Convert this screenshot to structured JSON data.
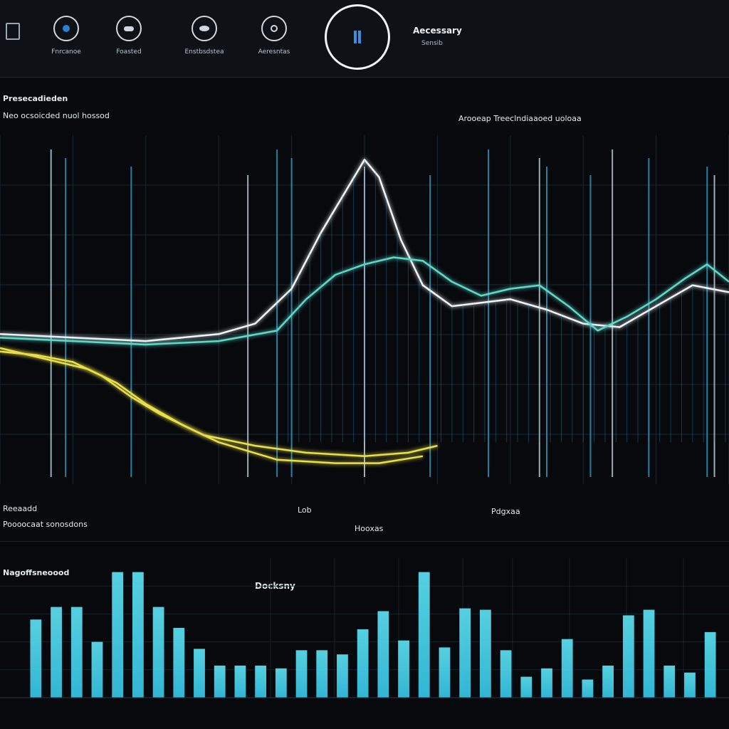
{
  "toolbar": {
    "title": "Aecessary",
    "subtitle": "Sensib",
    "tools": [
      {
        "label": "Fnrcanoe",
        "icon": "spiral-icon"
      },
      {
        "label": "Foasted",
        "icon": "cloud-icon"
      },
      {
        "label": "Enstbsdstea",
        "icon": "eye-icon"
      },
      {
        "label": "Aeresntas",
        "icon": "target-icon"
      }
    ]
  },
  "main_panel": {
    "title": "Presecadieden",
    "subtitle_left": "Neo ocsoicded nuol hossod",
    "subtitle_right": "Arooeap Treeclndiaaoed uoloaa",
    "footer_left_1": "Reeaadd",
    "footer_left_2": "Poooocaat sonosdons",
    "footer_mid_1": "Lob",
    "footer_mid_2": "Hooxas",
    "footer_right": "Pdgxaa"
  },
  "bar_panel": {
    "title": "Nagoffsneoood",
    "center_label": "Docksny"
  },
  "chart_data": [
    {
      "type": "line",
      "ylim": [
        0,
        10
      ],
      "xlim": [
        0,
        100
      ],
      "grid": true,
      "colors": {
        "peak": "#f2f5f8",
        "cyan": "#37d6ee",
        "yellow": "#e9df4a",
        "teal": "#5fd8c8"
      },
      "series": [
        {
          "color_key": "peak",
          "x": [
            0,
            10,
            20,
            30,
            35,
            40,
            44,
            48,
            50,
            52,
            55,
            58,
            62,
            66,
            70,
            75,
            80,
            85,
            90,
            95,
            100
          ],
          "y": [
            4.3,
            4.2,
            4.1,
            4.3,
            4.6,
            5.6,
            7.2,
            8.6,
            9.3,
            8.8,
            7.0,
            5.7,
            5.1,
            5.2,
            5.3,
            5.0,
            4.6,
            4.5,
            5.1,
            5.7,
            5.5
          ]
        },
        {
          "color_key": "teal",
          "x": [
            0,
            10,
            20,
            30,
            38,
            42,
            46,
            50,
            54,
            58,
            62,
            66,
            70,
            74,
            78,
            82,
            86,
            90,
            94,
            97,
            100
          ],
          "y": [
            4.2,
            4.1,
            4.0,
            4.1,
            4.4,
            5.3,
            6.0,
            6.3,
            6.5,
            6.4,
            5.8,
            5.4,
            5.6,
            5.7,
            5.1,
            4.4,
            4.8,
            5.3,
            5.9,
            6.3,
            5.8
          ]
        },
        {
          "color_key": "cyan",
          "x": [
            0,
            10,
            20,
            30,
            40,
            50,
            60,
            70,
            80,
            90,
            100
          ],
          "y": [
            4.0,
            4.0,
            4.0,
            4.0,
            4.0,
            4.0,
            4.0,
            4.0,
            4.0,
            4.0,
            4.0
          ]
        },
        {
          "color_key": "yellow",
          "x": [
            0,
            5,
            10,
            14,
            18,
            22,
            28,
            35,
            42,
            50,
            56,
            60
          ],
          "y": [
            3.8,
            3.7,
            3.5,
            3.1,
            2.5,
            2.0,
            1.4,
            1.1,
            0.9,
            0.8,
            0.9,
            1.1
          ]
        },
        {
          "color_key": "yellow",
          "x": [
            0,
            6,
            12,
            16,
            20,
            25,
            30,
            38,
            46,
            52,
            58
          ],
          "y": [
            3.9,
            3.6,
            3.3,
            2.9,
            2.3,
            1.7,
            1.2,
            0.7,
            0.6,
            0.6,
            0.8
          ]
        }
      ]
    },
    {
      "type": "bar",
      "ylim": [
        0,
        10
      ],
      "color": "#37c9ea",
      "values": [
        5.6,
        6.5,
        6.5,
        4.0,
        9.0,
        9.0,
        6.5,
        5.0,
        3.5,
        2.3,
        2.3,
        2.3,
        2.1,
        3.4,
        3.4,
        3.1,
        4.9,
        6.2,
        4.1,
        9.0,
        3.6,
        6.4,
        6.3,
        3.4,
        1.5,
        2.1,
        4.2,
        1.3,
        2.3,
        5.9,
        6.3,
        2.3,
        1.8,
        4.7
      ]
    }
  ]
}
